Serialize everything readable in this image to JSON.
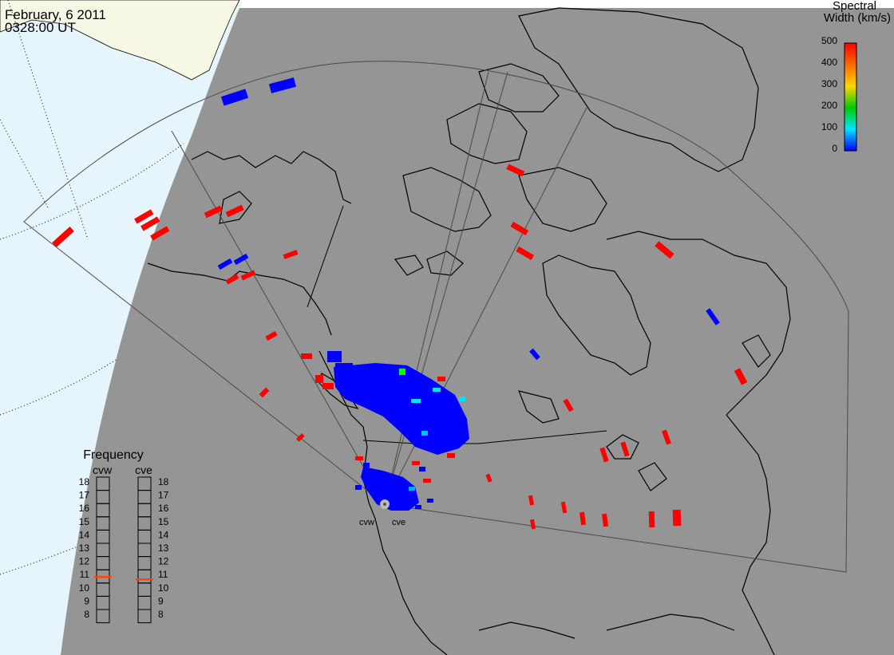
{
  "header": {
    "date": "February, 6 2011",
    "time": "0328:00 UT"
  },
  "colorbar": {
    "title_line1": "Spectral",
    "title_line2": "Width (km/s)",
    "ticks": [
      "500",
      "400",
      "300",
      "200",
      "100",
      "0"
    ],
    "colors": [
      "#ff0000",
      "#ff8c00",
      "#ffd700",
      "#00cc00",
      "#00e5ff",
      "#0000ff"
    ]
  },
  "frequency_panel": {
    "title": "Frequency",
    "radars": [
      "cvw",
      "cve"
    ],
    "levels": [
      "18",
      "17",
      "16",
      "15",
      "14",
      "13",
      "12",
      "11",
      "10",
      "9",
      "8"
    ],
    "cvw_frequency": "11",
    "cve_frequency": "11"
  },
  "radar_labels": [
    "cvw",
    "cve"
  ],
  "colors": {
    "daylight_land": "#f7f7e6",
    "daylight_ocean": "#e6f5fb",
    "night": "#959595",
    "scatter_red": "#ff0000",
    "scatter_blue": "#0000ff"
  }
}
